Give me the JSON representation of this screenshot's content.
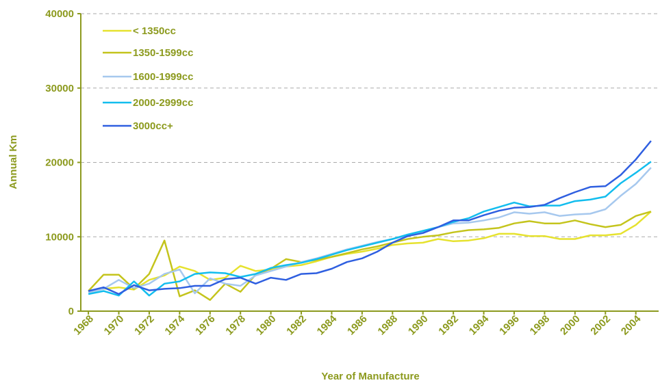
{
  "chart_data": {
    "type": "line",
    "x_label": "Year of Manufacture",
    "y_label": "Annual Km",
    "categories": [
      "1968",
      null,
      "1970",
      null,
      "1972",
      null,
      "1974",
      null,
      "1976",
      null,
      "1978",
      null,
      "1980",
      null,
      "1982",
      null,
      "1984",
      null,
      "1986",
      null,
      "1988",
      null,
      "1990",
      null,
      "1992",
      null,
      "1994",
      null,
      "1996",
      null,
      "1998",
      null,
      "2000",
      null,
      "2002",
      null,
      "2004",
      null
    ],
    "series": [
      {
        "name": "< 1350cc",
        "color": "#e6e22e",
        "values": [
          2600,
          3000,
          3200,
          2900,
          4200,
          4800,
          6000,
          5400,
          4200,
          4500,
          6100,
          5400,
          5600,
          6000,
          6200,
          6700,
          7300,
          7700,
          8000,
          8400,
          8900,
          9100,
          9200,
          9700,
          9400,
          9500,
          9800,
          10400,
          10400,
          10100,
          10100,
          9700,
          9700,
          10200,
          10200,
          10400,
          11600,
          13400
        ]
      },
      {
        "name": "1350-1599cc",
        "color": "#c4c41c",
        "values": [
          2700,
          4900,
          4900,
          3000,
          5000,
          9500,
          2000,
          2800,
          1500,
          3700,
          2600,
          4900,
          5700,
          7000,
          6600,
          6900,
          7300,
          7800,
          8300,
          8700,
          9200,
          9700,
          10000,
          10200,
          10600,
          10900,
          11000,
          11200,
          11800,
          12100,
          11800,
          11800,
          12200,
          11700,
          11300,
          11600,
          12800,
          13400
        ]
      },
      {
        "name": "1600-1999cc",
        "color": "#a6c8ee",
        "values": [
          2500,
          3000,
          4200,
          3100,
          3700,
          5000,
          5600,
          2400,
          4400,
          3700,
          3400,
          4800,
          5400,
          6000,
          6600,
          7100,
          7700,
          8300,
          8800,
          9300,
          9700,
          10200,
          10700,
          11300,
          11800,
          11900,
          12200,
          12600,
          13300,
          13100,
          13300,
          12800,
          13000,
          13100,
          13700,
          15500,
          17100,
          19300
        ]
      },
      {
        "name": "2000-2999cc",
        "color": "#12bdee",
        "values": [
          2300,
          2700,
          2100,
          4000,
          2100,
          3700,
          4000,
          5000,
          5200,
          5100,
          4600,
          5000,
          5800,
          6200,
          6500,
          7000,
          7600,
          8200,
          8700,
          9200,
          9700,
          10300,
          10800,
          11300,
          12000,
          12500,
          13400,
          14000,
          14600,
          14100,
          14200,
          14200,
          14800,
          15000,
          15400,
          17200,
          18600,
          20100
        ]
      },
      {
        "name": "3000cc+",
        "color": "#2f5fe0",
        "values": [
          2700,
          3200,
          2300,
          3500,
          2800,
          3000,
          3100,
          3400,
          3400,
          4300,
          4500,
          3700,
          4500,
          4200,
          5000,
          5100,
          5700,
          6600,
          7100,
          8000,
          9200,
          10100,
          10500,
          11300,
          12200,
          12200,
          12900,
          13500,
          13900,
          14000,
          14300,
          15200,
          16000,
          16700,
          16800,
          18300,
          20400,
          22900
        ]
      }
    ],
    "ylim": [
      0,
      40000
    ],
    "yticks": [
      0,
      10000,
      20000,
      30000,
      40000
    ],
    "grid": true,
    "legend": "top-left"
  }
}
